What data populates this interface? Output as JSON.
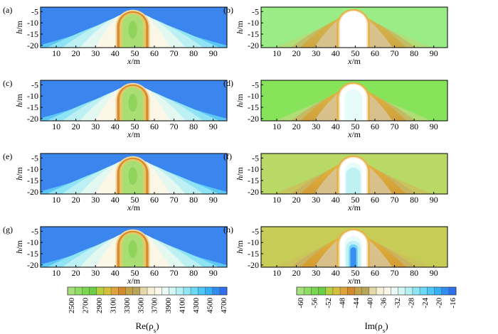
{
  "chart_data": [
    {
      "type": "heatmap",
      "panel_label": "(a)",
      "quantity": "Re",
      "xlabel": "x/m",
      "ylabel": "h/m",
      "x_ticks": [
        10,
        20,
        30,
        40,
        50,
        60,
        70,
        80,
        90
      ],
      "y_ticks": [
        -5,
        -10,
        -15,
        -20
      ],
      "xlim": [
        2,
        97
      ],
      "ylim": [
        -21,
        -3
      ]
    },
    {
      "type": "heatmap",
      "panel_label": "(b)",
      "quantity": "Im",
      "xlabel": "x/m",
      "ylabel": "h/m",
      "x_ticks": [
        10,
        20,
        30,
        40,
        50,
        60,
        70,
        80,
        90
      ],
      "y_ticks": [
        -5,
        -10,
        -15,
        -20
      ],
      "xlim": [
        2,
        97
      ],
      "ylim": [
        -21,
        -3
      ]
    },
    {
      "type": "heatmap",
      "panel_label": "(c)",
      "quantity": "Re",
      "xlabel": "x/m",
      "ylabel": "h/m",
      "x_ticks": [
        10,
        20,
        30,
        40,
        50,
        60,
        70,
        80,
        90
      ],
      "y_ticks": [
        -5,
        -10,
        -15,
        -20
      ],
      "xlim": [
        2,
        97
      ],
      "ylim": [
        -21,
        -3
      ]
    },
    {
      "type": "heatmap",
      "panel_label": "(d)",
      "quantity": "Im",
      "xlabel": "x/m",
      "ylabel": "h/m",
      "x_ticks": [
        10,
        20,
        30,
        40,
        50,
        60,
        70,
        80,
        90
      ],
      "y_ticks": [
        -5,
        -10,
        -15,
        -20
      ],
      "xlim": [
        2,
        97
      ],
      "ylim": [
        -21,
        -3
      ]
    },
    {
      "type": "heatmap",
      "panel_label": "(e)",
      "quantity": "Re",
      "xlabel": "x/m",
      "ylabel": "h/m",
      "x_ticks": [
        10,
        20,
        30,
        40,
        50,
        60,
        70,
        80,
        90
      ],
      "y_ticks": [
        -5,
        -10,
        -15,
        -20
      ],
      "xlim": [
        2,
        97
      ],
      "ylim": [
        -21,
        -3
      ]
    },
    {
      "type": "heatmap",
      "panel_label": "(f)",
      "quantity": "Im",
      "xlabel": "x/m",
      "ylabel": "h/m",
      "x_ticks": [
        10,
        20,
        30,
        40,
        50,
        60,
        70,
        80,
        90
      ],
      "y_ticks": [
        -5,
        -10,
        -15,
        -20
      ],
      "xlim": [
        2,
        97
      ],
      "ylim": [
        -21,
        -3
      ]
    },
    {
      "type": "heatmap",
      "panel_label": "(g)",
      "quantity": "Re",
      "xlabel": "x/m",
      "ylabel": "h/m",
      "x_ticks": [
        10,
        20,
        30,
        40,
        50,
        60,
        70,
        80,
        90
      ],
      "y_ticks": [
        -5,
        -10,
        -15,
        -20
      ],
      "xlim": [
        2,
        97
      ],
      "ylim": [
        -21,
        -3
      ]
    },
    {
      "type": "heatmap",
      "panel_label": "(h)",
      "quantity": "Im",
      "xlabel": "x/m",
      "ylabel": "h/m",
      "x_ticks": [
        10,
        20,
        30,
        40,
        50,
        60,
        70,
        80,
        90
      ],
      "y_ticks": [
        -5,
        -10,
        -15,
        -20
      ],
      "xlim": [
        2,
        97
      ],
      "ylim": [
        -21,
        -3
      ]
    }
  ],
  "colorbars": {
    "re": {
      "title": "Re(ρs)",
      "tick_labels": [
        "2500",
        "2700",
        "2900",
        "3100",
        "3300",
        "3500",
        "3700",
        "3900",
        "4100",
        "4300",
        "4500",
        "4700"
      ],
      "colors": [
        "#a6e07a",
        "#8fdc62",
        "#7ad64e",
        "#6ccf43",
        "#b6cf3c",
        "#d6c03a",
        "#e0a33a",
        "#d48a2a",
        "#c4a346",
        "#b9a559",
        "#e5d9a9",
        "#f7f0d6",
        "#fbf8ea",
        "#eafbf7",
        "#d2f7f3",
        "#b2f0f2",
        "#8ee6f4",
        "#6cd9f6",
        "#4cc7f8",
        "#34b0f6",
        "#2f8cf0",
        "#2e6ff0"
      ]
    },
    "im": {
      "title": "Im(ρs)",
      "tick_labels": [
        "-60",
        "-56",
        "-52",
        "-48",
        "-44",
        "-40",
        "-36",
        "-32",
        "-28",
        "-24",
        "-20",
        "-16"
      ],
      "colors": [
        "#a6e07a",
        "#8fdc62",
        "#7ad64e",
        "#6ccf43",
        "#b6cf3c",
        "#d6c03a",
        "#e0a33a",
        "#d48a2a",
        "#c4a346",
        "#b9a559",
        "#e5d9a9",
        "#f7f0d6",
        "#fbf8ea",
        "#eafbf7",
        "#d2f7f3",
        "#b2f0f2",
        "#8ee6f4",
        "#6cd9f6",
        "#4cc7f8",
        "#34b0f6",
        "#2f8cf0",
        "#2e6ff0"
      ]
    }
  },
  "colors": {
    "re_background": "#3a86ee",
    "re_mid": "#5cc6f5",
    "re_light": "#bdf0f2",
    "re_cream": "#fbf6e6",
    "re_rim": "#d98a2a",
    "re_rim_inner": "#e9c46a",
    "re_core": "#a9de74",
    "re_core_inner": "#8fd35d",
    "im_background_bright": "#9aec86",
    "im_background_mid": "#b9d967",
    "im_background_dark": "#c7cc56",
    "im_arm": "#e2b43a",
    "im_arm_dark": "#d8972a",
    "im_arm_mid": "#c9b060",
    "im_white": "#ffffff",
    "im_cyan": "#bff1f3",
    "im_blue": "#3b8ff0"
  }
}
